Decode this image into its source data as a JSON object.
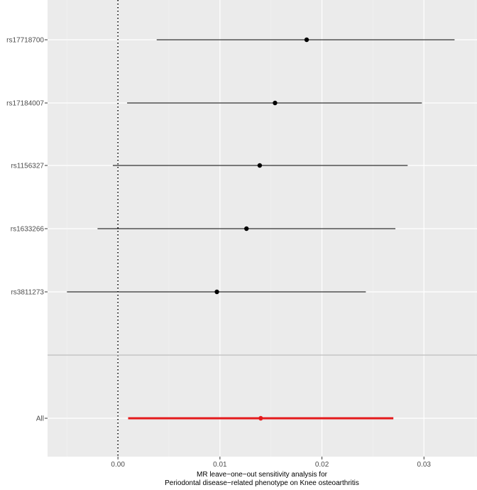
{
  "chart_data": {
    "type": "forest",
    "title": "",
    "xlabel_lines": [
      "MR leave−one−out sensitivity analysis for",
      "Periodontal disease−related phenotype on  Knee osteoarthritis"
    ],
    "ylabel": "",
    "xlim": [
      -0.0069,
      0.0352
    ],
    "x_ticks": [
      0.0,
      0.01,
      0.02,
      0.03
    ],
    "x_tick_labels": [
      "0.00",
      "0.01",
      "0.02",
      "0.03"
    ],
    "reference_line": 0,
    "grid": true,
    "snps": [
      {
        "label": "rs17718700",
        "estimate": 0.0185,
        "lower": 0.0038,
        "upper": 0.033
      },
      {
        "label": "rs17184007",
        "estimate": 0.0154,
        "lower": 0.0009,
        "upper": 0.0298
      },
      {
        "label": "rs1156327",
        "estimate": 0.0139,
        "lower": -0.0005,
        "upper": 0.0284
      },
      {
        "label": "rs1633266",
        "estimate": 0.0126,
        "lower": -0.002,
        "upper": 0.0272
      },
      {
        "label": "rs3811273",
        "estimate": 0.0097,
        "lower": -0.005,
        "upper": 0.0243
      }
    ],
    "overall": {
      "label": "All",
      "estimate": 0.014,
      "lower": 0.001,
      "upper": 0.027
    },
    "colors": {
      "panel_bg": "#ebebeb",
      "grid_major": "#ffffff",
      "grid_minor": "#f2f2f2",
      "snp_line": "#000000",
      "overall": "#e41a1c",
      "separator": "#bdbdbd",
      "tick_text": "#4d4d4d"
    }
  }
}
